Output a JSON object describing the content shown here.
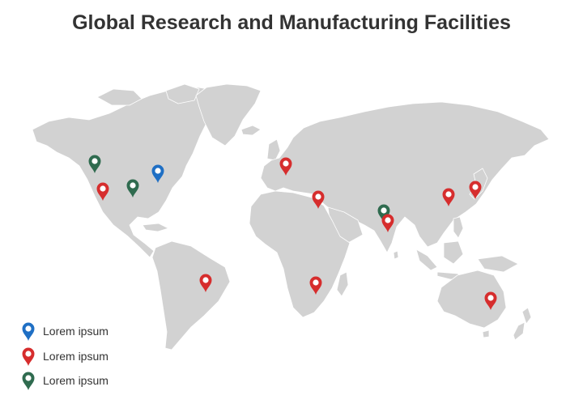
{
  "title": "Global Research and Manufacturing Facilities",
  "colors": {
    "land": "#d2d2d2",
    "border": "#ffffff",
    "blue": "#1f6fc4",
    "red": "#d62d2d",
    "green": "#2f6b4f"
  },
  "legend": [
    {
      "label": "Lorem ipsum",
      "color_key": "blue"
    },
    {
      "label": "Lorem ipsum",
      "color_key": "red"
    },
    {
      "label": "Lorem ipsum",
      "color_key": "green"
    }
  ],
  "markers": [
    {
      "region": "western-canada",
      "color_key": "green"
    },
    {
      "region": "great-lakes",
      "color_key": "blue"
    },
    {
      "region": "california",
      "color_key": "red"
    },
    {
      "region": "central-usa",
      "color_key": "green"
    },
    {
      "region": "western-europe",
      "color_key": "red"
    },
    {
      "region": "egypt",
      "color_key": "red"
    },
    {
      "region": "north-india",
      "color_key": "green"
    },
    {
      "region": "central-india",
      "color_key": "red"
    },
    {
      "region": "china",
      "color_key": "red"
    },
    {
      "region": "japan",
      "color_key": "red"
    },
    {
      "region": "brazil",
      "color_key": "red"
    },
    {
      "region": "southern-africa",
      "color_key": "red"
    },
    {
      "region": "eastern-australia",
      "color_key": "red"
    }
  ]
}
